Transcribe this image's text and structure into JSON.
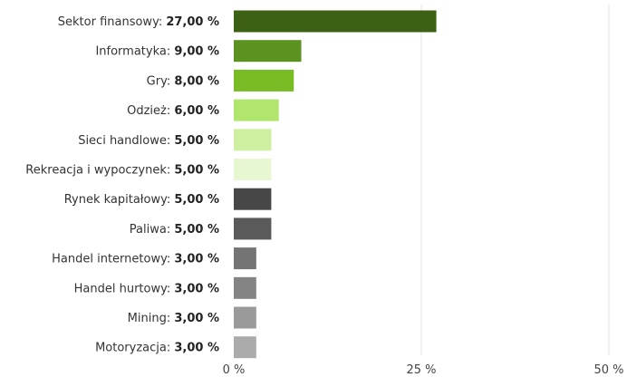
{
  "chart_data": {
    "type": "bar",
    "orientation": "horizontal",
    "categories": [
      "Sektor finansowy",
      "Informatyka",
      "Gry",
      "Odzież",
      "Sieci handlowe",
      "Rekreacja i wypoczynek",
      "Rynek kapitałowy",
      "Paliwa",
      "Handel internetowy",
      "Handel hurtowy",
      "Mining",
      "Motoryzacja"
    ],
    "values": [
      27,
      9,
      8,
      6,
      5,
      5,
      5,
      5,
      3,
      3,
      3,
      3
    ],
    "value_labels": [
      "27,00 %",
      "9,00 %",
      "8,00 %",
      "6,00 %",
      "5,00 %",
      "5,00 %",
      "5,00 %",
      "5,00 %",
      "3,00 %",
      "3,00 %",
      "3,00 %",
      "3,00 %"
    ],
    "colors": [
      "#3d6114",
      "#5b9220",
      "#78bb25",
      "#b0e66e",
      "#cdef9f",
      "#e6f7d2",
      "#474747",
      "#5a5a5a",
      "#747474",
      "#848484",
      "#9a9a9a",
      "#ababab"
    ],
    "xlim": [
      0,
      50
    ],
    "x_ticks": [
      0,
      25,
      50
    ],
    "x_tick_labels": [
      "0 %",
      "25 %",
      "50 %"
    ],
    "grid": true
  }
}
